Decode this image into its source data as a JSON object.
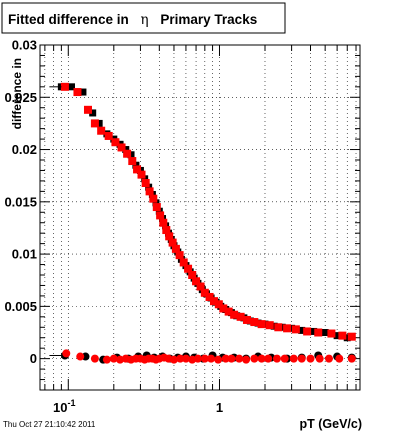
{
  "window": {
    "timestamp": "Thu Oct 27 21:10:42 2011"
  },
  "chart_data": {
    "type": "scatter",
    "title_prefix": "Fitted difference in",
    "title_symbol": "η",
    "title_suffix": "Primary Tracks",
    "xlabel": "pT (GeV/c)",
    "ylabel": "difference in",
    "x_scale": "log",
    "xlim": [
      0.065,
      8.5
    ],
    "ylim": [
      -0.003,
      0.03
    ],
    "grid": true,
    "y_ticks": [
      {
        "value": 0,
        "label": "0"
      },
      {
        "value": 0.005,
        "label": "0.005"
      },
      {
        "value": 0.01,
        "label": "0.01"
      },
      {
        "value": 0.015,
        "label": "0.015"
      },
      {
        "value": 0.02,
        "label": "0.02"
      },
      {
        "value": 0.025,
        "label": "0.025"
      },
      {
        "value": 0.03,
        "label": "0.03"
      }
    ],
    "x_ticks": [
      {
        "value": 0.1,
        "base": "10",
        "exp": "-1"
      },
      {
        "value": 1,
        "base": "1",
        "exp": ""
      }
    ],
    "series": [
      {
        "color": "#000000",
        "marker": "square",
        "x": [
          0.09,
          0.105,
          0.125,
          0.145,
          0.16,
          0.18,
          0.2,
          0.22,
          0.24,
          0.26,
          0.28,
          0.3,
          0.32,
          0.34,
          0.36,
          0.38,
          0.4,
          0.42,
          0.44,
          0.46,
          0.48,
          0.5,
          0.53,
          0.56,
          0.6,
          0.64,
          0.68,
          0.72,
          0.77,
          0.82,
          0.88,
          0.95,
          1.02,
          1.1,
          1.2,
          1.3,
          1.45,
          1.6,
          1.8,
          2.0,
          2.3,
          2.6,
          3.0,
          3.5,
          4.2,
          5.0,
          6.0,
          7.0
        ],
        "values": [
          0.026,
          0.026,
          0.0255,
          0.0235,
          0.0225,
          0.0215,
          0.021,
          0.0205,
          0.02,
          0.0195,
          0.0185,
          0.018,
          0.0172,
          0.0164,
          0.0157,
          0.0149,
          0.0141,
          0.0134,
          0.0127,
          0.012,
          0.0114,
          0.0108,
          0.0102,
          0.0095,
          0.0089,
          0.0083,
          0.0077,
          0.0072,
          0.0066,
          0.0062,
          0.0058,
          0.0054,
          0.005,
          0.0047,
          0.0044,
          0.0041,
          0.0039,
          0.0036,
          0.0034,
          0.0033,
          0.0031,
          0.003,
          0.0029,
          0.0027,
          0.0026,
          0.0025,
          0.0022,
          0.002
        ]
      },
      {
        "color": "#ff0000",
        "marker": "square",
        "x": [
          0.095,
          0.115,
          0.135,
          0.15,
          0.165,
          0.185,
          0.205,
          0.225,
          0.245,
          0.265,
          0.285,
          0.305,
          0.325,
          0.345,
          0.365,
          0.385,
          0.405,
          0.425,
          0.445,
          0.465,
          0.49,
          0.515,
          0.545,
          0.58,
          0.62,
          0.66,
          0.7,
          0.75,
          0.8,
          0.86,
          0.92,
          0.99,
          1.06,
          1.15,
          1.25,
          1.38,
          1.52,
          1.7,
          1.9,
          2.15,
          2.45,
          2.8,
          3.2,
          3.8,
          4.5,
          5.5,
          6.5,
          7.5
        ],
        "values": [
          0.026,
          0.0255,
          0.0238,
          0.0225,
          0.0218,
          0.0213,
          0.0207,
          0.0202,
          0.0196,
          0.0189,
          0.0181,
          0.0176,
          0.0168,
          0.016,
          0.0153,
          0.0145,
          0.0137,
          0.013,
          0.0123,
          0.0117,
          0.0111,
          0.0105,
          0.0099,
          0.0092,
          0.0086,
          0.008,
          0.0074,
          0.0069,
          0.0063,
          0.0059,
          0.0055,
          0.0052,
          0.0048,
          0.0045,
          0.0042,
          0.004,
          0.0037,
          0.0035,
          0.0033,
          0.0032,
          0.003,
          0.0029,
          0.0028,
          0.0026,
          0.0025,
          0.0024,
          0.0022,
          0.0021
        ]
      },
      {
        "color": "#000000",
        "marker": "circle",
        "x": [
          0.095,
          0.13,
          0.17,
          0.21,
          0.25,
          0.29,
          0.33,
          0.37,
          0.42,
          0.47,
          0.53,
          0.6,
          0.68,
          0.78,
          0.9,
          1.05,
          1.25,
          1.5,
          1.8,
          2.2,
          2.8,
          3.5,
          4.5,
          6.0,
          7.5
        ],
        "values": [
          0.0003,
          0.0002,
          -0.0001,
          0.0001,
          0.0,
          0.0002,
          0.0003,
          0.0001,
          0.0002,
          0.0,
          0.0001,
          0.0002,
          0.0001,
          0.0,
          0.0003,
          0.0001,
          0.0001,
          0.0,
          0.0002,
          0.0001,
          0.0,
          0.0001,
          0.0003,
          0.0002,
          0.0001
        ]
      },
      {
        "color": "#ff0000",
        "marker": "circle",
        "x": [
          0.097,
          0.12,
          0.15,
          0.18,
          0.2,
          0.22,
          0.24,
          0.26,
          0.28,
          0.3,
          0.32,
          0.34,
          0.36,
          0.38,
          0.4,
          0.43,
          0.46,
          0.5,
          0.55,
          0.6,
          0.66,
          0.72,
          0.8,
          0.88,
          0.98,
          1.1,
          1.2,
          1.35,
          1.5,
          1.7,
          1.9,
          2.1,
          2.4,
          2.7,
          3.1,
          3.5,
          4.0,
          4.6,
          5.3,
          6.2,
          7.5
        ],
        "values": [
          0.0005,
          0.0002,
          0.0,
          -0.0001,
          0.0,
          -0.0001,
          0.0,
          -0.0001,
          0.0,
          0.0,
          -0.0001,
          0.0,
          0.0,
          -0.0001,
          0.0,
          0.0001,
          0.0,
          -0.0001,
          0.0,
          0.0,
          -0.0001,
          0.0,
          0.0,
          0.0,
          -0.0001,
          0.0,
          0.0,
          0.0,
          -0.0001,
          0.0,
          0.0,
          0.0,
          0.0,
          0.0,
          0.0,
          0.0,
          0.0,
          0.0,
          0.0,
          0.0,
          0.0
        ]
      }
    ]
  }
}
